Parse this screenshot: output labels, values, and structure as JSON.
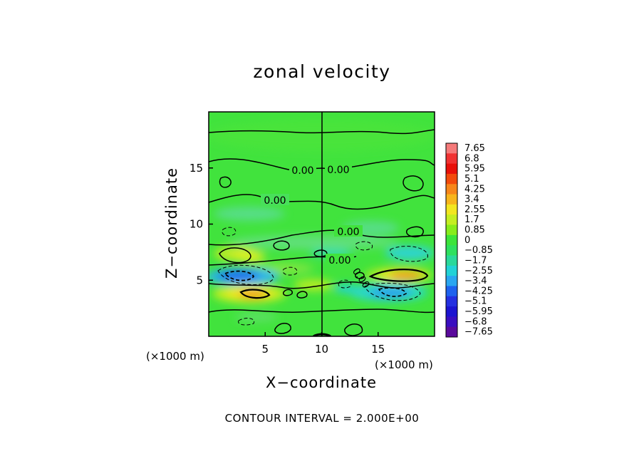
{
  "chart_data": {
    "type": "heatmap",
    "title": "zonal velocity",
    "xlabel": "X−coordinate",
    "ylabel": "Z−coordinate",
    "x_units": "(×1000 m)",
    "y_units": "(×1000 m)",
    "xlim": [
      0,
      20
    ],
    "ylim": [
      0,
      20
    ],
    "x_ticks": [
      {
        "value": 5,
        "label": "5"
      },
      {
        "value": 10,
        "label": "10"
      },
      {
        "value": 15,
        "label": "15"
      }
    ],
    "y_ticks": [
      {
        "value": 5,
        "label": "5"
      },
      {
        "value": 10,
        "label": "10"
      },
      {
        "value": 15,
        "label": "15"
      }
    ],
    "colorbar": {
      "levels": [
        "7.65",
        "6.8",
        "5.95",
        "5.1",
        "4.25",
        "3.4",
        "2.55",
        "1.7",
        "0.85",
        "0",
        "−0.85",
        "−1.7",
        "−2.55",
        "−3.4",
        "−4.25",
        "−5.1",
        "−5.95",
        "−6.8",
        "−7.65"
      ],
      "colors": [
        "#f57a7a",
        "#f03232",
        "#e8100a",
        "#f24a0c",
        "#f7861a",
        "#f7b51c",
        "#f2e620",
        "#c4ee22",
        "#87ec1c",
        "#3ce43a",
        "#2ee05e",
        "#2ad89a",
        "#22d2d6",
        "#2aa6f0",
        "#1e62ee",
        "#2430e0",
        "#1c14d0",
        "#3a0ec0",
        "#5a0a9c"
      ]
    },
    "fields": [
      {
        "kind": "positive",
        "x": 3.5,
        "z": 3.8,
        "peak": 4.2
      },
      {
        "kind": "positive",
        "x": 16.5,
        "z": 5.2,
        "peak": 4.0
      },
      {
        "kind": "negative",
        "x": 2.5,
        "z": 5.2,
        "peak": -4.8
      },
      {
        "kind": "negative",
        "x": 15.5,
        "z": 3.8,
        "peak": -3.2
      },
      {
        "kind": "positive",
        "x": 2.5,
        "z": 7.0,
        "peak": 1.8
      },
      {
        "kind": "negative",
        "x": 16.5,
        "z": 6.8,
        "peak": -2.0
      }
    ],
    "contour_labels": [
      "0.00",
      "0.00",
      "0.00",
      "0.00",
      "0.00",
      "0.00"
    ],
    "annotation": "CONTOUR INTERVAL = 2.000E+00"
  }
}
